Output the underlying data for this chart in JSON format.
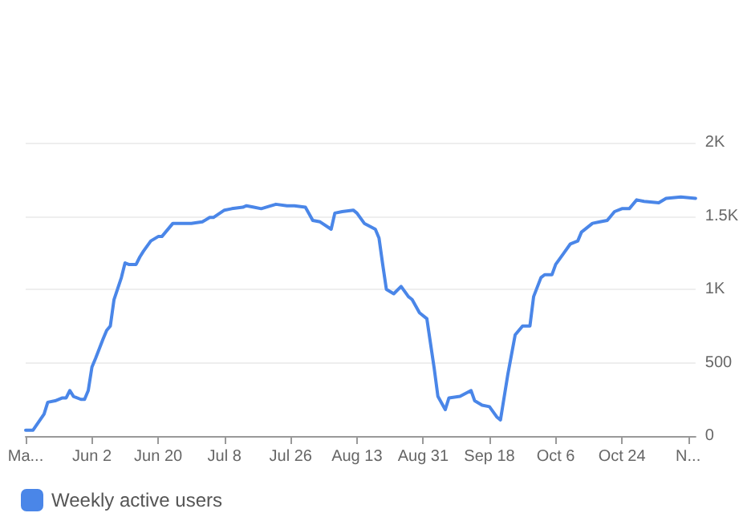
{
  "chart_data": {
    "type": "line",
    "x": [
      "--05-15",
      "--05-17",
      "--05-20",
      "--05-21",
      "--05-23",
      "--05-25",
      "--05-26",
      "--05-27",
      "--05-28",
      "--05-30",
      "--05-31",
      "--06-01",
      "--06-02",
      "--06-03",
      "--06-05",
      "--06-06",
      "--06-07",
      "--06-08",
      "--06-10",
      "--06-11",
      "--06-12",
      "--06-14",
      "--06-15",
      "--06-16",
      "--06-18",
      "--06-20",
      "--06-21",
      "--06-23",
      "--06-24",
      "--06-26",
      "--06-29",
      "--07-02",
      "--07-04",
      "--07-05",
      "--07-08",
      "--07-10",
      "--07-13",
      "--07-14",
      "--07-16",
      "--07-18",
      "--07-22",
      "--07-25",
      "--07-27",
      "--07-30",
      "--08-01",
      "--08-03",
      "--08-06",
      "--08-07",
      "--08-09",
      "--08-12",
      "--08-13",
      "--08-15",
      "--08-18",
      "--08-19",
      "--08-20",
      "--08-21",
      "--08-23",
      "--08-25",
      "--08-27",
      "--08-28",
      "--08-30",
      "--09-01",
      "--09-03",
      "--09-04",
      "--09-06",
      "--09-07",
      "--09-10",
      "--09-13",
      "--09-14",
      "--09-16",
      "--09-18",
      "--09-20",
      "--09-21",
      "--09-23",
      "--09-25",
      "--09-27",
      "--09-29",
      "--09-30",
      "--10-02",
      "--10-03",
      "--10-05",
      "--10-06",
      "--10-08",
      "--10-10",
      "--10-12",
      "--10-13",
      "--10-16",
      "--10-18",
      "--10-20",
      "--10-22",
      "--10-24",
      "--10-26",
      "--10-28",
      "--10-30",
      "--11-03",
      "--11-05",
      "--11-09",
      "--11-13"
    ],
    "series": [
      {
        "name": "Weekly active users",
        "color": "#4a86e8",
        "values": [
          40,
          40,
          150,
          230,
          240,
          260,
          260,
          310,
          270,
          250,
          250,
          310,
          470,
          530,
          660,
          720,
          750,
          930,
          1080,
          1180,
          1170,
          1170,
          1220,
          1260,
          1330,
          1360,
          1360,
          1420,
          1450,
          1450,
          1450,
          1460,
          1490,
          1490,
          1540,
          1550,
          1560,
          1570,
          1560,
          1550,
          1580,
          1570,
          1570,
          1560,
          1470,
          1460,
          1410,
          1520,
          1530,
          1540,
          1520,
          1450,
          1410,
          1350,
          1170,
          1000,
          970,
          1020,
          950,
          930,
          840,
          800,
          460,
          270,
          180,
          260,
          270,
          310,
          240,
          210,
          200,
          130,
          110,
          420,
          690,
          750,
          750,
          950,
          1080,
          1100,
          1100,
          1170,
          1240,
          1310,
          1330,
          1390,
          1450,
          1460,
          1470,
          1530,
          1550,
          1550,
          1610,
          1600,
          1590,
          1620,
          1630,
          1620
        ]
      }
    ],
    "xlim": [
      "--05-15",
      "--11-13"
    ],
    "xticks": [
      {
        "value": "--05-15",
        "label": "Ma..."
      },
      {
        "value": "--06-02",
        "label": "Jun 2"
      },
      {
        "value": "--06-20",
        "label": "Jun 20"
      },
      {
        "value": "--07-08",
        "label": "Jul 8"
      },
      {
        "value": "--07-26",
        "label": "Jul 26"
      },
      {
        "value": "--08-13",
        "label": "Aug 13"
      },
      {
        "value": "--08-31",
        "label": "Aug 31"
      },
      {
        "value": "--09-18",
        "label": "Sep 18"
      },
      {
        "value": "--10-06",
        "label": "Oct 6"
      },
      {
        "value": "--10-24",
        "label": "Oct 24"
      },
      {
        "value": "--11-11",
        "label": "N..."
      }
    ],
    "ylim": [
      0,
      2000
    ],
    "yticks": [
      0,
      500,
      {
        "value": 1000,
        "label": "1K"
      },
      {
        "value": 1500,
        "label": "1.5K"
      },
      {
        "value": 2000,
        "label": "2K"
      }
    ],
    "grid": "y",
    "legend": "bottom left",
    "marker": "none",
    "line_style": "solid"
  }
}
